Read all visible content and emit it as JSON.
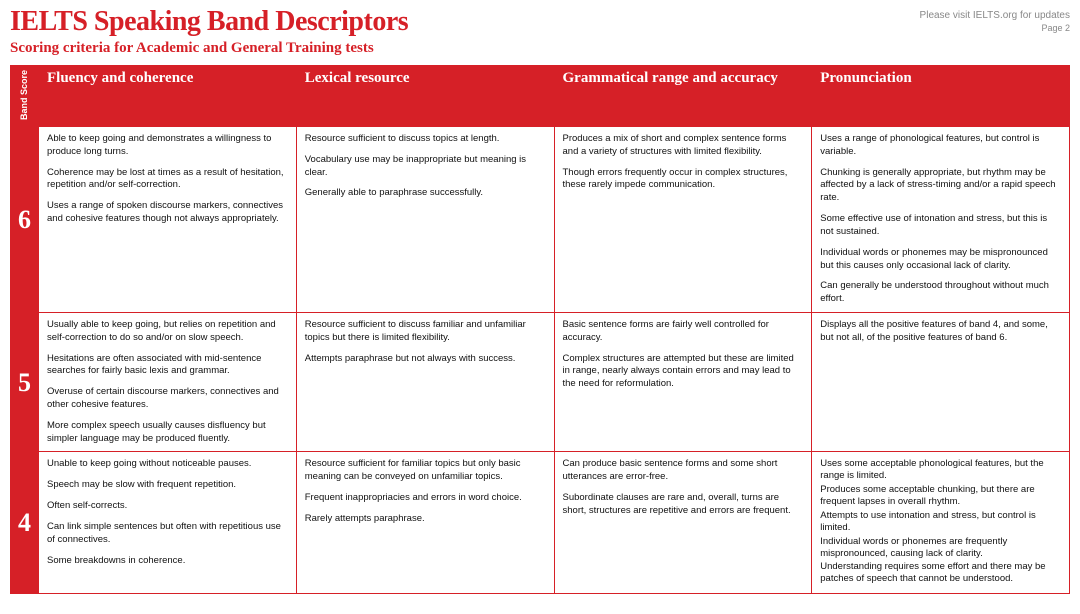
{
  "meta": {
    "title": "IELTS Speaking Band Descriptors",
    "subtitle": "Scoring criteria for Academic and General Training tests",
    "updates_text": "Please visit IELTS.org for updates",
    "page": "Page 2"
  },
  "colors": {
    "brand_red": "#d62027",
    "text_dark": "#111111",
    "text_muted": "#888888",
    "background": "#ffffff"
  },
  "table": {
    "band_score_head": "Band Score",
    "columns": [
      "Fluency and coherence",
      "Lexical resource",
      "Grammatical range and accuracy",
      "Pronunciation"
    ],
    "rows": [
      {
        "band": "6",
        "cells": [
          [
            "Able to keep going and demonstrates a willingness to produce long turns.",
            "Coherence may be lost at times as a result of hesitation, repetition and/or self-correction.",
            "Uses a range of spoken discourse markers, connectives and cohesive features though not always appropriately."
          ],
          [
            "Resource sufficient to discuss topics at length.",
            "Vocabulary use may be inappropriate but meaning is clear.",
            "Generally able to paraphrase successfully."
          ],
          [
            "Produces a mix of short and complex sentence forms and a variety of structures with limited flexibility.",
            "Though errors frequently occur in complex structures, these rarely impede communication."
          ],
          [
            "Uses a range of phonological features, but control is variable.",
            "Chunking is generally appropriate, but rhythm may be affected by a lack of stress-timing and/or a rapid speech rate.",
            "Some effective use of intonation and stress, but this is not sustained.",
            "Individual words or phonemes may be mispronounced but this causes only occasional lack of clarity.",
            "Can generally be understood throughout without much effort."
          ]
        ]
      },
      {
        "band": "5",
        "cells": [
          [
            "Usually able to keep going, but relies on repetition and self-correction to do so and/or on slow speech.",
            "Hesitations are often associated with mid-sentence searches for fairly basic lexis and grammar.",
            "Overuse of certain discourse markers, connectives and other cohesive features.",
            "More complex speech usually causes disfluency but simpler language may be produced fluently."
          ],
          [
            "Resource sufficient to discuss familiar and unfamiliar topics but there is limited flexibility.",
            "Attempts paraphrase but not always with success."
          ],
          [
            "Basic sentence forms are fairly well controlled for accuracy.",
            "Complex structures are attempted but these are limited in range, nearly always contain errors and may lead to the need for reformulation."
          ],
          [
            "Displays all the positive features of band 4, and some, but not all, of the positive features of band 6."
          ]
        ]
      },
      {
        "band": "4",
        "cells": [
          [
            "Unable to keep going without noticeable pauses.",
            "Speech may be slow with frequent repetition.",
            "Often self-corrects.",
            "Can link simple sentences but often with repetitious use of connectives.",
            "Some breakdowns in coherence."
          ],
          [
            "Resource sufficient for familiar topics but only basic meaning can be conveyed on unfamiliar topics.",
            "Frequent inappropriacies and errors in word choice.",
            "Rarely attempts paraphrase."
          ],
          [
            "Can produce basic sentence forms and some short utterances are error-free.",
            "Subordinate clauses are rare and, overall, turns are short, structures are repetitive and errors are frequent."
          ],
          [
            "Uses some acceptable phonological features, but the range is limited.",
            "Produces some acceptable chunking, but there are frequent lapses in overall rhythm.",
            "Attempts to use intonation and stress, but control is limited.",
            "Individual words or phonemes are frequently mispronounced, causing lack of clarity.",
            "Understanding requires some effort and there may be patches of speech that cannot be understood."
          ]
        ]
      }
    ]
  }
}
